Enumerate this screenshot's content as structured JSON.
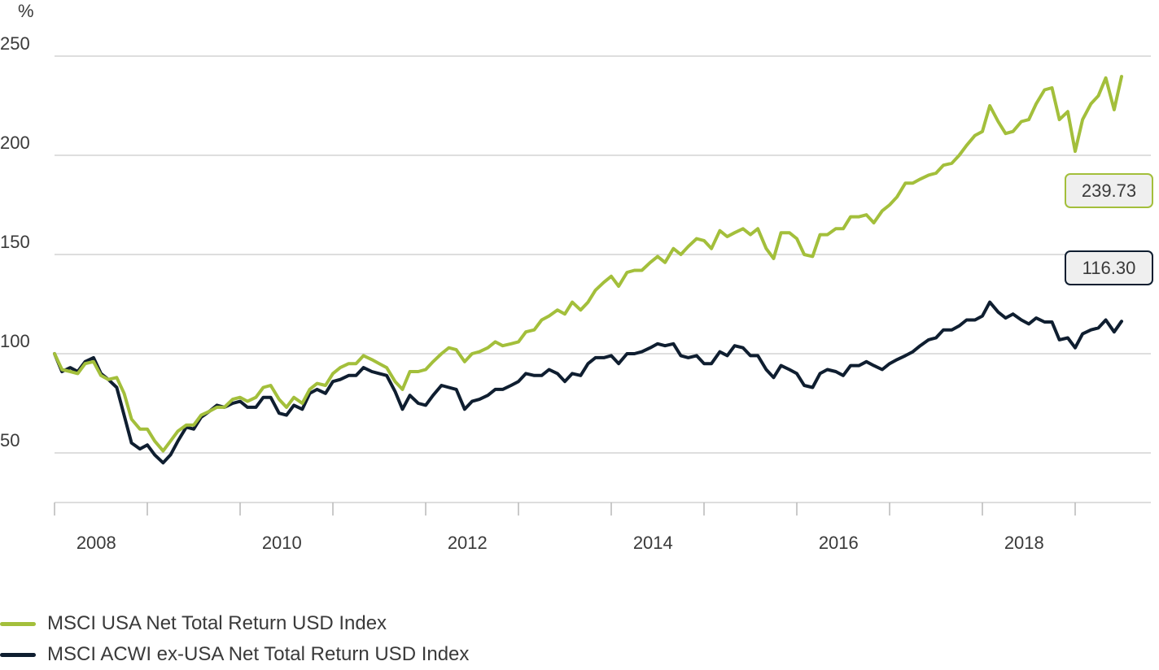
{
  "chart_data": {
    "type": "line",
    "ylabel": "%",
    "ylim": [
      25,
      260
    ],
    "yticks": [
      50,
      100,
      150,
      200,
      250
    ],
    "xlim": [
      2008.0,
      2019.85
    ],
    "xticks": [
      "2008",
      "2010",
      "2012",
      "2014",
      "2016",
      "2018"
    ],
    "grid": true,
    "legend_position": "bottom-left",
    "series": [
      {
        "name": "MSCI USA Net Total Return USD Index",
        "color": "#a3bf3b",
        "end_label": "239.73",
        "points": [
          [
            2008.0,
            100
          ],
          [
            2008.08,
            92
          ],
          [
            2008.17,
            91
          ],
          [
            2008.25,
            90
          ],
          [
            2008.33,
            95
          ],
          [
            2008.42,
            96
          ],
          [
            2008.5,
            89
          ],
          [
            2008.58,
            87
          ],
          [
            2008.67,
            88
          ],
          [
            2008.75,
            80
          ],
          [
            2008.83,
            67
          ],
          [
            2008.92,
            62
          ],
          [
            2009.0,
            62
          ],
          [
            2009.08,
            56
          ],
          [
            2009.17,
            51
          ],
          [
            2009.25,
            56
          ],
          [
            2009.33,
            61
          ],
          [
            2009.42,
            64
          ],
          [
            2009.5,
            64
          ],
          [
            2009.58,
            69
          ],
          [
            2009.67,
            71
          ],
          [
            2009.75,
            73
          ],
          [
            2009.83,
            73
          ],
          [
            2009.92,
            77
          ],
          [
            2010.0,
            78
          ],
          [
            2010.08,
            76
          ],
          [
            2010.17,
            78
          ],
          [
            2010.25,
            83
          ],
          [
            2010.33,
            84
          ],
          [
            2010.42,
            77
          ],
          [
            2010.5,
            73
          ],
          [
            2010.58,
            78
          ],
          [
            2010.67,
            75
          ],
          [
            2010.75,
            82
          ],
          [
            2010.83,
            85
          ],
          [
            2010.92,
            84
          ],
          [
            2011.0,
            90
          ],
          [
            2011.08,
            93
          ],
          [
            2011.17,
            95
          ],
          [
            2011.25,
            95
          ],
          [
            2011.33,
            99
          ],
          [
            2011.42,
            97
          ],
          [
            2011.5,
            95
          ],
          [
            2011.58,
            93
          ],
          [
            2011.67,
            86
          ],
          [
            2011.75,
            82
          ],
          [
            2011.83,
            91
          ],
          [
            2011.92,
            91
          ],
          [
            2012.0,
            92
          ],
          [
            2012.08,
            96
          ],
          [
            2012.17,
            100
          ],
          [
            2012.25,
            103
          ],
          [
            2012.33,
            102
          ],
          [
            2012.42,
            96
          ],
          [
            2012.5,
            100
          ],
          [
            2012.58,
            101
          ],
          [
            2012.67,
            103
          ],
          [
            2012.75,
            106
          ],
          [
            2012.83,
            104
          ],
          [
            2012.92,
            105
          ],
          [
            2013.0,
            106
          ],
          [
            2013.08,
            111
          ],
          [
            2013.17,
            112
          ],
          [
            2013.25,
            117
          ],
          [
            2013.33,
            119
          ],
          [
            2013.42,
            122
          ],
          [
            2013.5,
            120
          ],
          [
            2013.58,
            126
          ],
          [
            2013.67,
            122
          ],
          [
            2013.75,
            126
          ],
          [
            2013.83,
            132
          ],
          [
            2013.92,
            136
          ],
          [
            2014.0,
            139
          ],
          [
            2014.08,
            134
          ],
          [
            2014.17,
            141
          ],
          [
            2014.25,
            142
          ],
          [
            2014.33,
            142
          ],
          [
            2014.42,
            146
          ],
          [
            2014.5,
            149
          ],
          [
            2014.58,
            146
          ],
          [
            2014.67,
            153
          ],
          [
            2014.75,
            150
          ],
          [
            2014.83,
            154
          ],
          [
            2014.92,
            158
          ],
          [
            2015.0,
            157
          ],
          [
            2015.08,
            153
          ],
          [
            2015.17,
            162
          ],
          [
            2015.25,
            159
          ],
          [
            2015.33,
            161
          ],
          [
            2015.42,
            163
          ],
          [
            2015.5,
            160
          ],
          [
            2015.58,
            163
          ],
          [
            2015.67,
            153
          ],
          [
            2015.75,
            148
          ],
          [
            2015.83,
            161
          ],
          [
            2015.92,
            161
          ],
          [
            2016.0,
            158
          ],
          [
            2016.08,
            150
          ],
          [
            2016.17,
            149
          ],
          [
            2016.25,
            160
          ],
          [
            2016.33,
            160
          ],
          [
            2016.42,
            163
          ],
          [
            2016.5,
            163
          ],
          [
            2016.58,
            169
          ],
          [
            2016.67,
            169
          ],
          [
            2016.75,
            170
          ],
          [
            2016.83,
            166
          ],
          [
            2016.92,
            172
          ],
          [
            2017.0,
            175
          ],
          [
            2017.08,
            179
          ],
          [
            2017.17,
            186
          ],
          [
            2017.25,
            186
          ],
          [
            2017.33,
            188
          ],
          [
            2017.42,
            190
          ],
          [
            2017.5,
            191
          ],
          [
            2017.58,
            195
          ],
          [
            2017.67,
            196
          ],
          [
            2017.75,
            200
          ],
          [
            2017.83,
            205
          ],
          [
            2017.92,
            210
          ],
          [
            2018.0,
            212
          ],
          [
            2018.08,
            225
          ],
          [
            2018.17,
            217
          ],
          [
            2018.25,
            211
          ],
          [
            2018.33,
            212
          ],
          [
            2018.42,
            217
          ],
          [
            2018.5,
            218
          ],
          [
            2018.58,
            226
          ],
          [
            2018.67,
            233
          ],
          [
            2018.75,
            234
          ],
          [
            2018.83,
            218
          ],
          [
            2018.92,
            222
          ],
          [
            2019.0,
            202
          ],
          [
            2019.08,
            218
          ],
          [
            2019.17,
            226
          ],
          [
            2019.25,
            230
          ],
          [
            2019.33,
            239
          ],
          [
            2019.42,
            223
          ],
          [
            2019.5,
            239.73
          ]
        ]
      },
      {
        "name": "MSCI ACWI ex-USA Net Total Return USD Index",
        "color": "#0f1e30",
        "end_label": "116.30",
        "points": [
          [
            2008.0,
            100
          ],
          [
            2008.08,
            91
          ],
          [
            2008.17,
            93
          ],
          [
            2008.25,
            91
          ],
          [
            2008.33,
            96
          ],
          [
            2008.42,
            98
          ],
          [
            2008.5,
            90
          ],
          [
            2008.58,
            87
          ],
          [
            2008.67,
            83
          ],
          [
            2008.75,
            69
          ],
          [
            2008.83,
            55
          ],
          [
            2008.92,
            52
          ],
          [
            2009.0,
            54
          ],
          [
            2009.08,
            49
          ],
          [
            2009.17,
            45
          ],
          [
            2009.25,
            49
          ],
          [
            2009.33,
            56
          ],
          [
            2009.42,
            63
          ],
          [
            2009.5,
            62
          ],
          [
            2009.58,
            68
          ],
          [
            2009.67,
            71
          ],
          [
            2009.75,
            74
          ],
          [
            2009.83,
            73
          ],
          [
            2009.92,
            75
          ],
          [
            2010.0,
            76
          ],
          [
            2010.08,
            73
          ],
          [
            2010.17,
            73
          ],
          [
            2010.25,
            78
          ],
          [
            2010.33,
            78
          ],
          [
            2010.42,
            70
          ],
          [
            2010.5,
            69
          ],
          [
            2010.58,
            74
          ],
          [
            2010.67,
            72
          ],
          [
            2010.75,
            80
          ],
          [
            2010.83,
            82
          ],
          [
            2010.92,
            80
          ],
          [
            2011.0,
            86
          ],
          [
            2011.08,
            87
          ],
          [
            2011.17,
            89
          ],
          [
            2011.25,
            89
          ],
          [
            2011.33,
            93
          ],
          [
            2011.42,
            91
          ],
          [
            2011.5,
            90
          ],
          [
            2011.58,
            89
          ],
          [
            2011.67,
            81
          ],
          [
            2011.75,
            72
          ],
          [
            2011.83,
            79
          ],
          [
            2011.92,
            75
          ],
          [
            2012.0,
            74
          ],
          [
            2012.08,
            79
          ],
          [
            2012.17,
            84
          ],
          [
            2012.25,
            83
          ],
          [
            2012.33,
            82
          ],
          [
            2012.42,
            72
          ],
          [
            2012.5,
            76
          ],
          [
            2012.58,
            77
          ],
          [
            2012.67,
            79
          ],
          [
            2012.75,
            82
          ],
          [
            2012.83,
            82
          ],
          [
            2012.92,
            84
          ],
          [
            2013.0,
            86
          ],
          [
            2013.08,
            90
          ],
          [
            2013.17,
            89
          ],
          [
            2013.25,
            89
          ],
          [
            2013.33,
            92
          ],
          [
            2013.42,
            90
          ],
          [
            2013.5,
            86
          ],
          [
            2013.58,
            90
          ],
          [
            2013.67,
            89
          ],
          [
            2013.75,
            95
          ],
          [
            2013.83,
            98
          ],
          [
            2013.92,
            98
          ],
          [
            2014.0,
            99
          ],
          [
            2014.08,
            95
          ],
          [
            2014.17,
            100
          ],
          [
            2014.25,
            100
          ],
          [
            2014.33,
            101
          ],
          [
            2014.42,
            103
          ],
          [
            2014.5,
            105
          ],
          [
            2014.58,
            104
          ],
          [
            2014.67,
            105
          ],
          [
            2014.75,
            99
          ],
          [
            2014.83,
            98
          ],
          [
            2014.92,
            99
          ],
          [
            2015.0,
            95
          ],
          [
            2015.08,
            95
          ],
          [
            2015.17,
            101
          ],
          [
            2015.25,
            99
          ],
          [
            2015.33,
            104
          ],
          [
            2015.42,
            103
          ],
          [
            2015.5,
            99
          ],
          [
            2015.58,
            99
          ],
          [
            2015.67,
            92
          ],
          [
            2015.75,
            88
          ],
          [
            2015.83,
            94
          ],
          [
            2015.92,
            92
          ],
          [
            2016.0,
            90
          ],
          [
            2016.08,
            84
          ],
          [
            2016.17,
            83
          ],
          [
            2016.25,
            90
          ],
          [
            2016.33,
            92
          ],
          [
            2016.42,
            91
          ],
          [
            2016.5,
            89
          ],
          [
            2016.58,
            94
          ],
          [
            2016.67,
            94
          ],
          [
            2016.75,
            96
          ],
          [
            2016.83,
            94
          ],
          [
            2016.92,
            92
          ],
          [
            2017.0,
            95
          ],
          [
            2017.08,
            97
          ],
          [
            2017.17,
            99
          ],
          [
            2017.25,
            101
          ],
          [
            2017.33,
            104
          ],
          [
            2017.42,
            107
          ],
          [
            2017.5,
            108
          ],
          [
            2017.58,
            112
          ],
          [
            2017.67,
            112
          ],
          [
            2017.75,
            114
          ],
          [
            2017.83,
            117
          ],
          [
            2017.92,
            117
          ],
          [
            2018.0,
            119
          ],
          [
            2018.08,
            126
          ],
          [
            2018.17,
            121
          ],
          [
            2018.25,
            118
          ],
          [
            2018.33,
            120
          ],
          [
            2018.42,
            117
          ],
          [
            2018.5,
            115
          ],
          [
            2018.58,
            118
          ],
          [
            2018.67,
            116
          ],
          [
            2018.75,
            116
          ],
          [
            2018.83,
            107
          ],
          [
            2018.92,
            108
          ],
          [
            2019.0,
            103
          ],
          [
            2019.08,
            110
          ],
          [
            2019.17,
            112
          ],
          [
            2019.25,
            113
          ],
          [
            2019.33,
            117
          ],
          [
            2019.42,
            111
          ],
          [
            2019.5,
            116.3
          ]
        ]
      }
    ]
  }
}
